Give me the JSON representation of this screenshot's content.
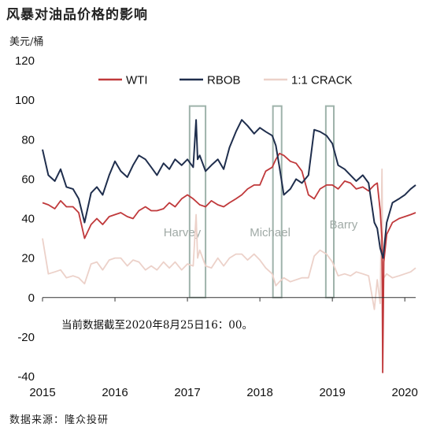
{
  "chart_data": {
    "type": "line",
    "title": "风暴对油品价格的影响",
    "ylabel": "美元/桶",
    "source": "数据来源：隆众投研",
    "note": "当前数据截至2020年8月25日16：00。",
    "ylim": [
      -40,
      120
    ],
    "yticks": [
      -40,
      -20,
      0,
      20,
      40,
      60,
      80,
      100,
      120
    ],
    "xlim": [
      2015.0,
      2020.15
    ],
    "xticks": [
      "2015",
      "2016",
      "2017",
      "2018",
      "2019",
      "2020"
    ],
    "grid": false,
    "legend_position": "top",
    "events": [
      {
        "name": "Harvey",
        "start": 2017.03,
        "end": 2017.25
      },
      {
        "name": "Michael",
        "start": 2018.18,
        "end": 2018.3
      },
      {
        "name": "Barry",
        "start": 2018.91,
        "end": 2019.02
      }
    ],
    "series": [
      {
        "name": "WTI",
        "color": "#c0393b",
        "x": [
          2015.0,
          2015.08,
          2015.17,
          2015.25,
          2015.33,
          2015.42,
          2015.5,
          2015.58,
          2015.67,
          2015.75,
          2015.83,
          2015.92,
          2016.0,
          2016.08,
          2016.17,
          2016.25,
          2016.33,
          2016.42,
          2016.5,
          2016.58,
          2016.67,
          2016.75,
          2016.83,
          2016.92,
          2017.0,
          2017.08,
          2017.17,
          2017.25,
          2017.33,
          2017.42,
          2017.5,
          2017.58,
          2017.67,
          2017.75,
          2017.83,
          2017.92,
          2018.0,
          2018.08,
          2018.17,
          2018.22,
          2018.27,
          2018.33,
          2018.42,
          2018.5,
          2018.58,
          2018.67,
          2018.75,
          2018.83,
          2018.92,
          2019.0,
          2019.08,
          2019.17,
          2019.25,
          2019.33,
          2019.42,
          2019.5,
          2019.58,
          2019.62,
          2019.66,
          2019.685,
          2019.695,
          2019.71,
          2019.75,
          2019.83,
          2019.92,
          2020.0,
          2020.08,
          2020.15
        ],
        "values": [
          48,
          47,
          45,
          49,
          46,
          46,
          43,
          30,
          37,
          40,
          37,
          41,
          42,
          43,
          41,
          40,
          44,
          46,
          44,
          44,
          45,
          48,
          46,
          50,
          52,
          50,
          47,
          46,
          49,
          47,
          46,
          48,
          50,
          52,
          55,
          57,
          57,
          64,
          66,
          70,
          73,
          72,
          69,
          68,
          64,
          52,
          50,
          55,
          57,
          57,
          55,
          59,
          58,
          55,
          56,
          54,
          57,
          58,
          44,
          30,
          -38,
          18,
          32,
          38,
          40,
          41,
          42,
          43
        ]
      },
      {
        "name": "RBOB",
        "color": "#1f2e4d",
        "x": [
          2015.0,
          2015.08,
          2015.17,
          2015.25,
          2015.33,
          2015.42,
          2015.5,
          2015.58,
          2015.67,
          2015.75,
          2015.83,
          2015.92,
          2016.0,
          2016.08,
          2016.17,
          2016.25,
          2016.33,
          2016.42,
          2016.5,
          2016.58,
          2016.67,
          2016.75,
          2016.83,
          2016.92,
          2017.0,
          2017.08,
          2017.12,
          2017.14,
          2017.17,
          2017.25,
          2017.33,
          2017.42,
          2017.5,
          2017.58,
          2017.67,
          2017.75,
          2017.83,
          2017.92,
          2018.0,
          2018.08,
          2018.17,
          2018.22,
          2018.27,
          2018.33,
          2018.42,
          2018.5,
          2018.58,
          2018.67,
          2018.75,
          2018.83,
          2018.92,
          2019.0,
          2019.08,
          2019.17,
          2019.25,
          2019.33,
          2019.42,
          2019.5,
          2019.58,
          2019.62,
          2019.66,
          2019.7,
          2019.75,
          2019.83,
          2019.92,
          2020.0,
          2020.08,
          2020.15
        ],
        "values": [
          75,
          62,
          59,
          65,
          56,
          55,
          50,
          38,
          53,
          56,
          52,
          62,
          69,
          64,
          61,
          67,
          72,
          70,
          66,
          62,
          68,
          65,
          70,
          67,
          70,
          66,
          90,
          70,
          72,
          64,
          67,
          70,
          65,
          76,
          84,
          90,
          87,
          83,
          86,
          84,
          82,
          77,
          66,
          52,
          55,
          60,
          58,
          62,
          85,
          84,
          82,
          78,
          67,
          65,
          62,
          59,
          62,
          58,
          38,
          35,
          25,
          20,
          38,
          48,
          50,
          52,
          55,
          57
        ]
      },
      {
        "name": "1:1 CRACK",
        "color": "#ecd1c9",
        "x": [
          2015.0,
          2015.08,
          2015.17,
          2015.25,
          2015.33,
          2015.42,
          2015.5,
          2015.58,
          2015.67,
          2015.75,
          2015.83,
          2015.92,
          2016.0,
          2016.08,
          2016.17,
          2016.25,
          2016.33,
          2016.42,
          2016.5,
          2016.58,
          2016.67,
          2016.75,
          2016.83,
          2016.92,
          2017.0,
          2017.08,
          2017.12,
          2017.14,
          2017.17,
          2017.25,
          2017.33,
          2017.42,
          2017.5,
          2017.58,
          2017.67,
          2017.75,
          2017.83,
          2017.92,
          2018.0,
          2018.08,
          2018.17,
          2018.22,
          2018.27,
          2018.33,
          2018.42,
          2018.5,
          2018.58,
          2018.67,
          2018.75,
          2018.83,
          2018.92,
          2019.0,
          2019.08,
          2019.17,
          2019.25,
          2019.33,
          2019.42,
          2019.5,
          2019.58,
          2019.62,
          2019.66,
          2019.685,
          2019.695,
          2019.71,
          2019.75,
          2019.83,
          2019.92,
          2020.0,
          2020.08,
          2020.15
        ],
        "values": [
          30,
          12,
          13,
          14,
          10,
          11,
          10,
          7,
          17,
          18,
          14,
          19,
          20,
          20,
          16,
          19,
          18,
          14,
          16,
          14,
          18,
          15,
          18,
          14,
          17,
          16,
          42,
          20,
          24,
          16,
          15,
          20,
          16,
          20,
          22,
          22,
          19,
          22,
          19,
          15,
          12,
          6,
          8,
          10,
          8,
          9,
          10,
          10,
          21,
          24,
          22,
          18,
          11,
          12,
          11,
          13,
          12,
          11,
          -6,
          9,
          -3,
          65,
          20,
          10,
          12,
          10,
          11,
          12,
          13,
          15
        ]
      }
    ]
  }
}
